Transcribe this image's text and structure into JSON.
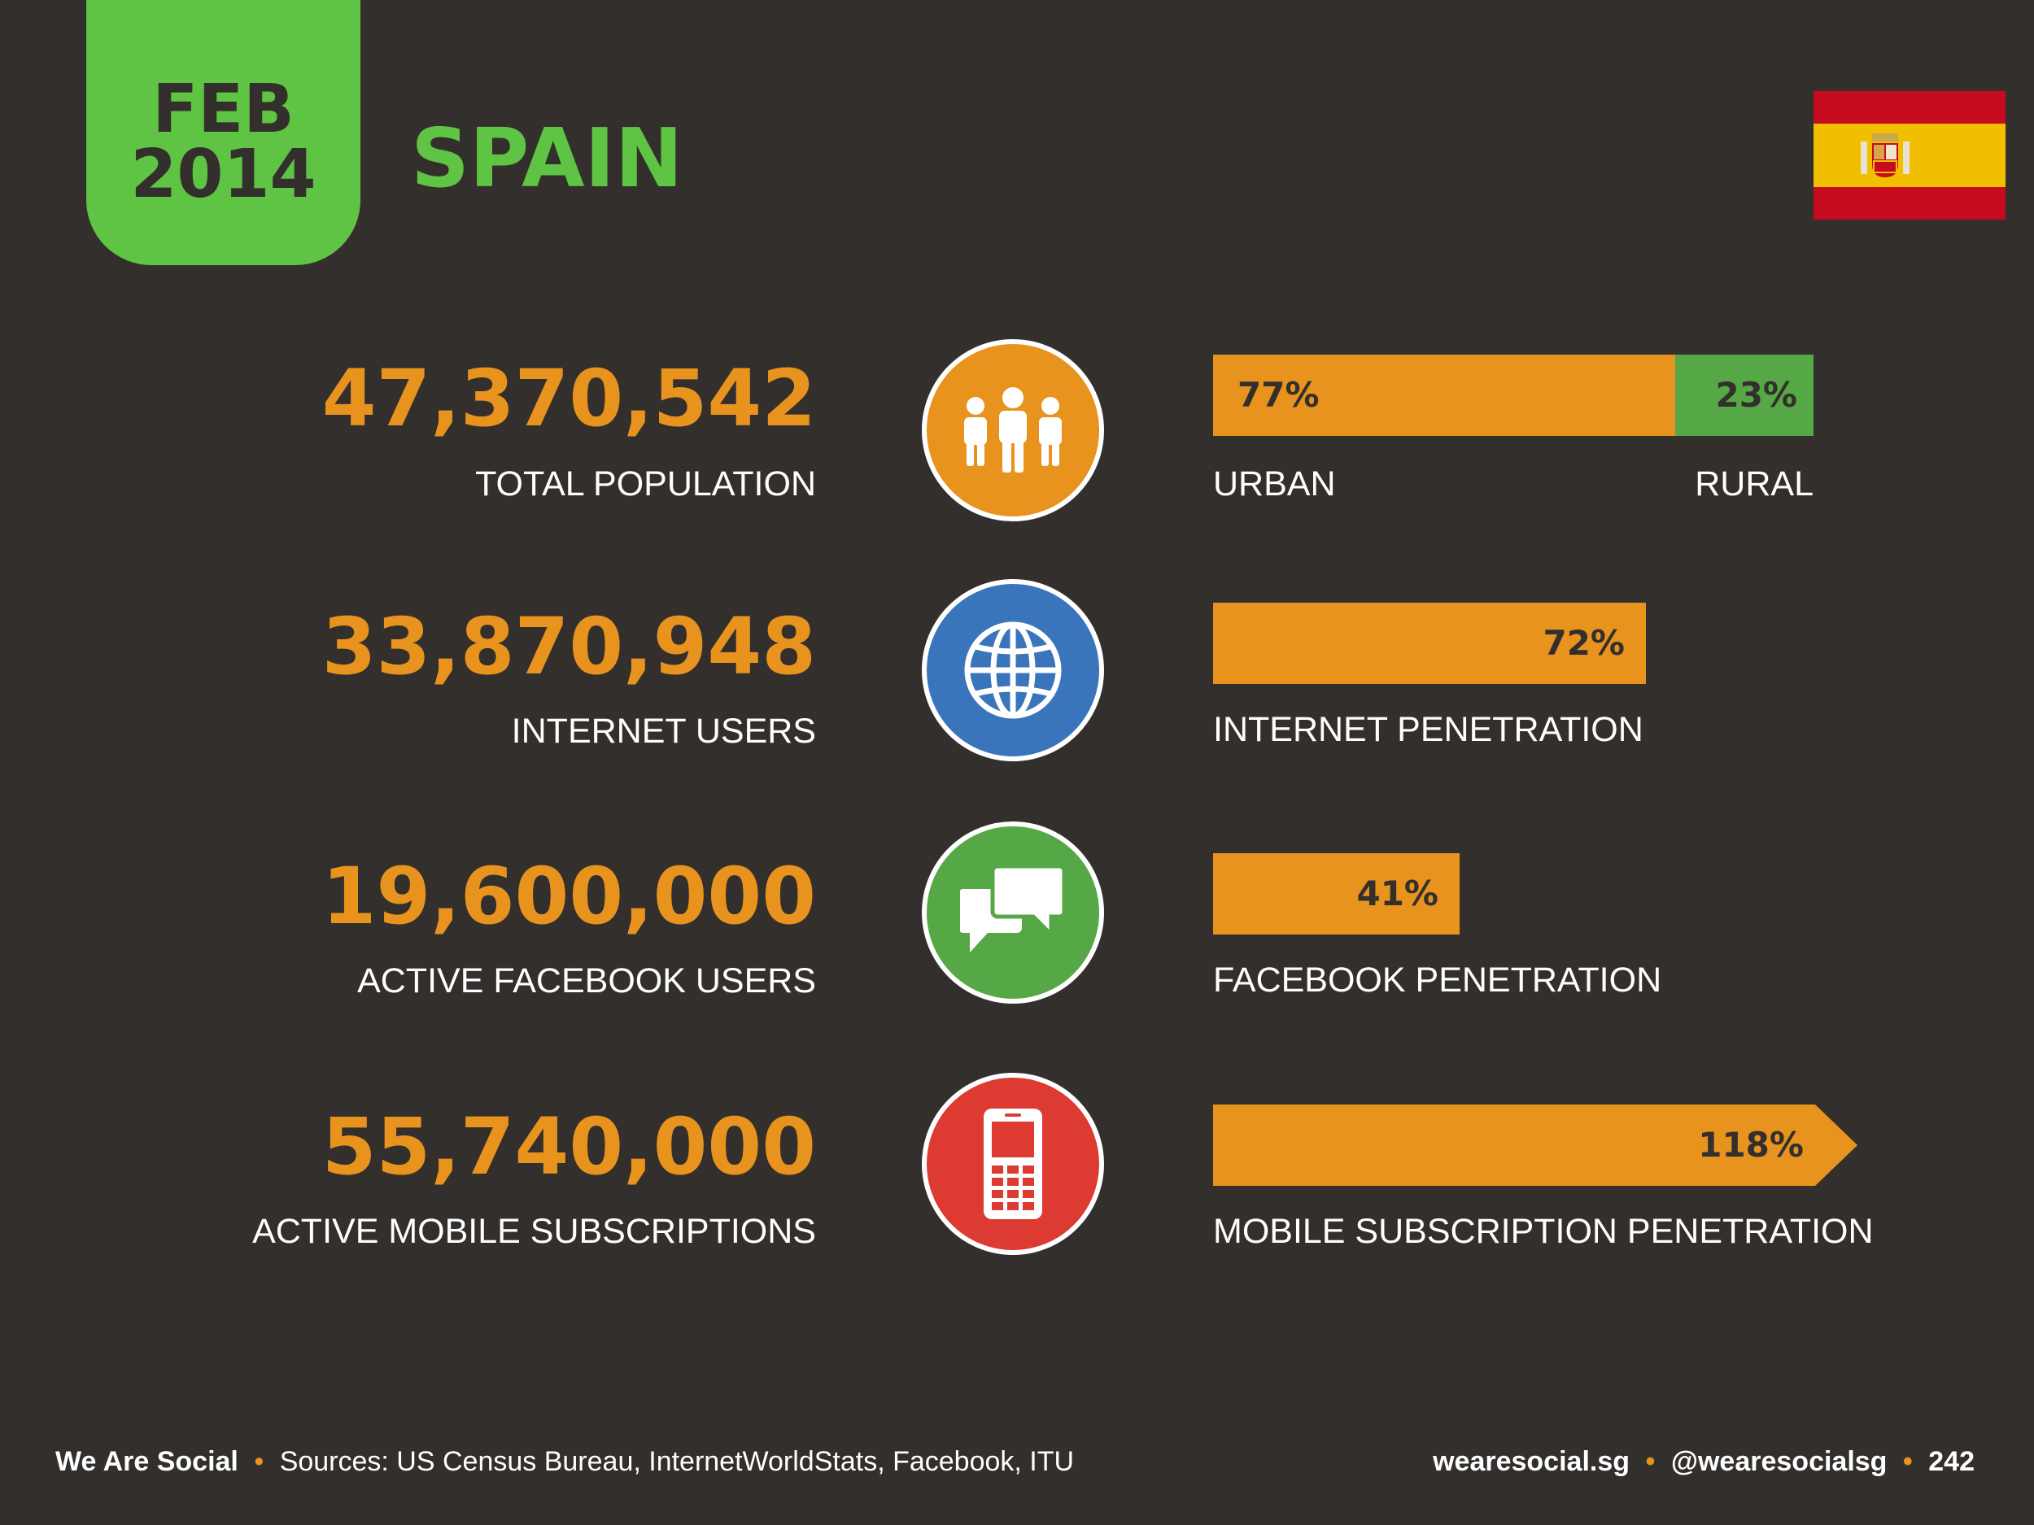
{
  "header": {
    "month": "FEB",
    "year": "2014",
    "country": "SPAIN"
  },
  "flag": {
    "icon": "spain-flag",
    "colors": [
      "#c60b1e",
      "#f1bf00"
    ]
  },
  "colors": {
    "accent_orange": "#e8931e",
    "accent_green": "#5fc343",
    "background": "#332f2c"
  },
  "stats": [
    {
      "value": "47,370,542",
      "label": "TOTAL POPULATION",
      "icon": "people-icon",
      "icon_color": "#e8931e",
      "bar": {
        "segments": [
          {
            "pct": "77%",
            "fraction": 0.77,
            "color": "#e8931e"
          },
          {
            "pct": "23%",
            "fraction": 0.23,
            "color": "#56a846"
          }
        ],
        "label_left": "URBAN",
        "label_right": "RURAL"
      }
    },
    {
      "value": "33,870,948",
      "label": "INTERNET USERS",
      "icon": "globe-icon",
      "icon_color": "#3a74bb",
      "bar": {
        "pct": "72%",
        "fraction": 0.72,
        "label": "INTERNET PENETRATION"
      }
    },
    {
      "value": "19,600,000",
      "label": "ACTIVE FACEBOOK USERS",
      "icon": "chat-bubbles-icon",
      "icon_color": "#56a846",
      "bar": {
        "pct": "41%",
        "fraction": 0.41,
        "label": "FACEBOOK PENETRATION"
      }
    },
    {
      "value": "55,740,000",
      "label": "ACTIVE MOBILE SUBSCRIPTIONS",
      "icon": "mobile-phone-icon",
      "icon_color": "#dd3a32",
      "bar": {
        "pct": "118%",
        "fraction": 1.18,
        "label": "MOBILE SUBSCRIPTION PENETRATION"
      }
    }
  ],
  "footer": {
    "brand": "We Are Social",
    "sources": "Sources: US Census Bureau, InternetWorldStats, Facebook, ITU",
    "website": "wearesocial.sg",
    "handle": "@wearesocialsg",
    "page_number": "242",
    "separator": "•"
  }
}
